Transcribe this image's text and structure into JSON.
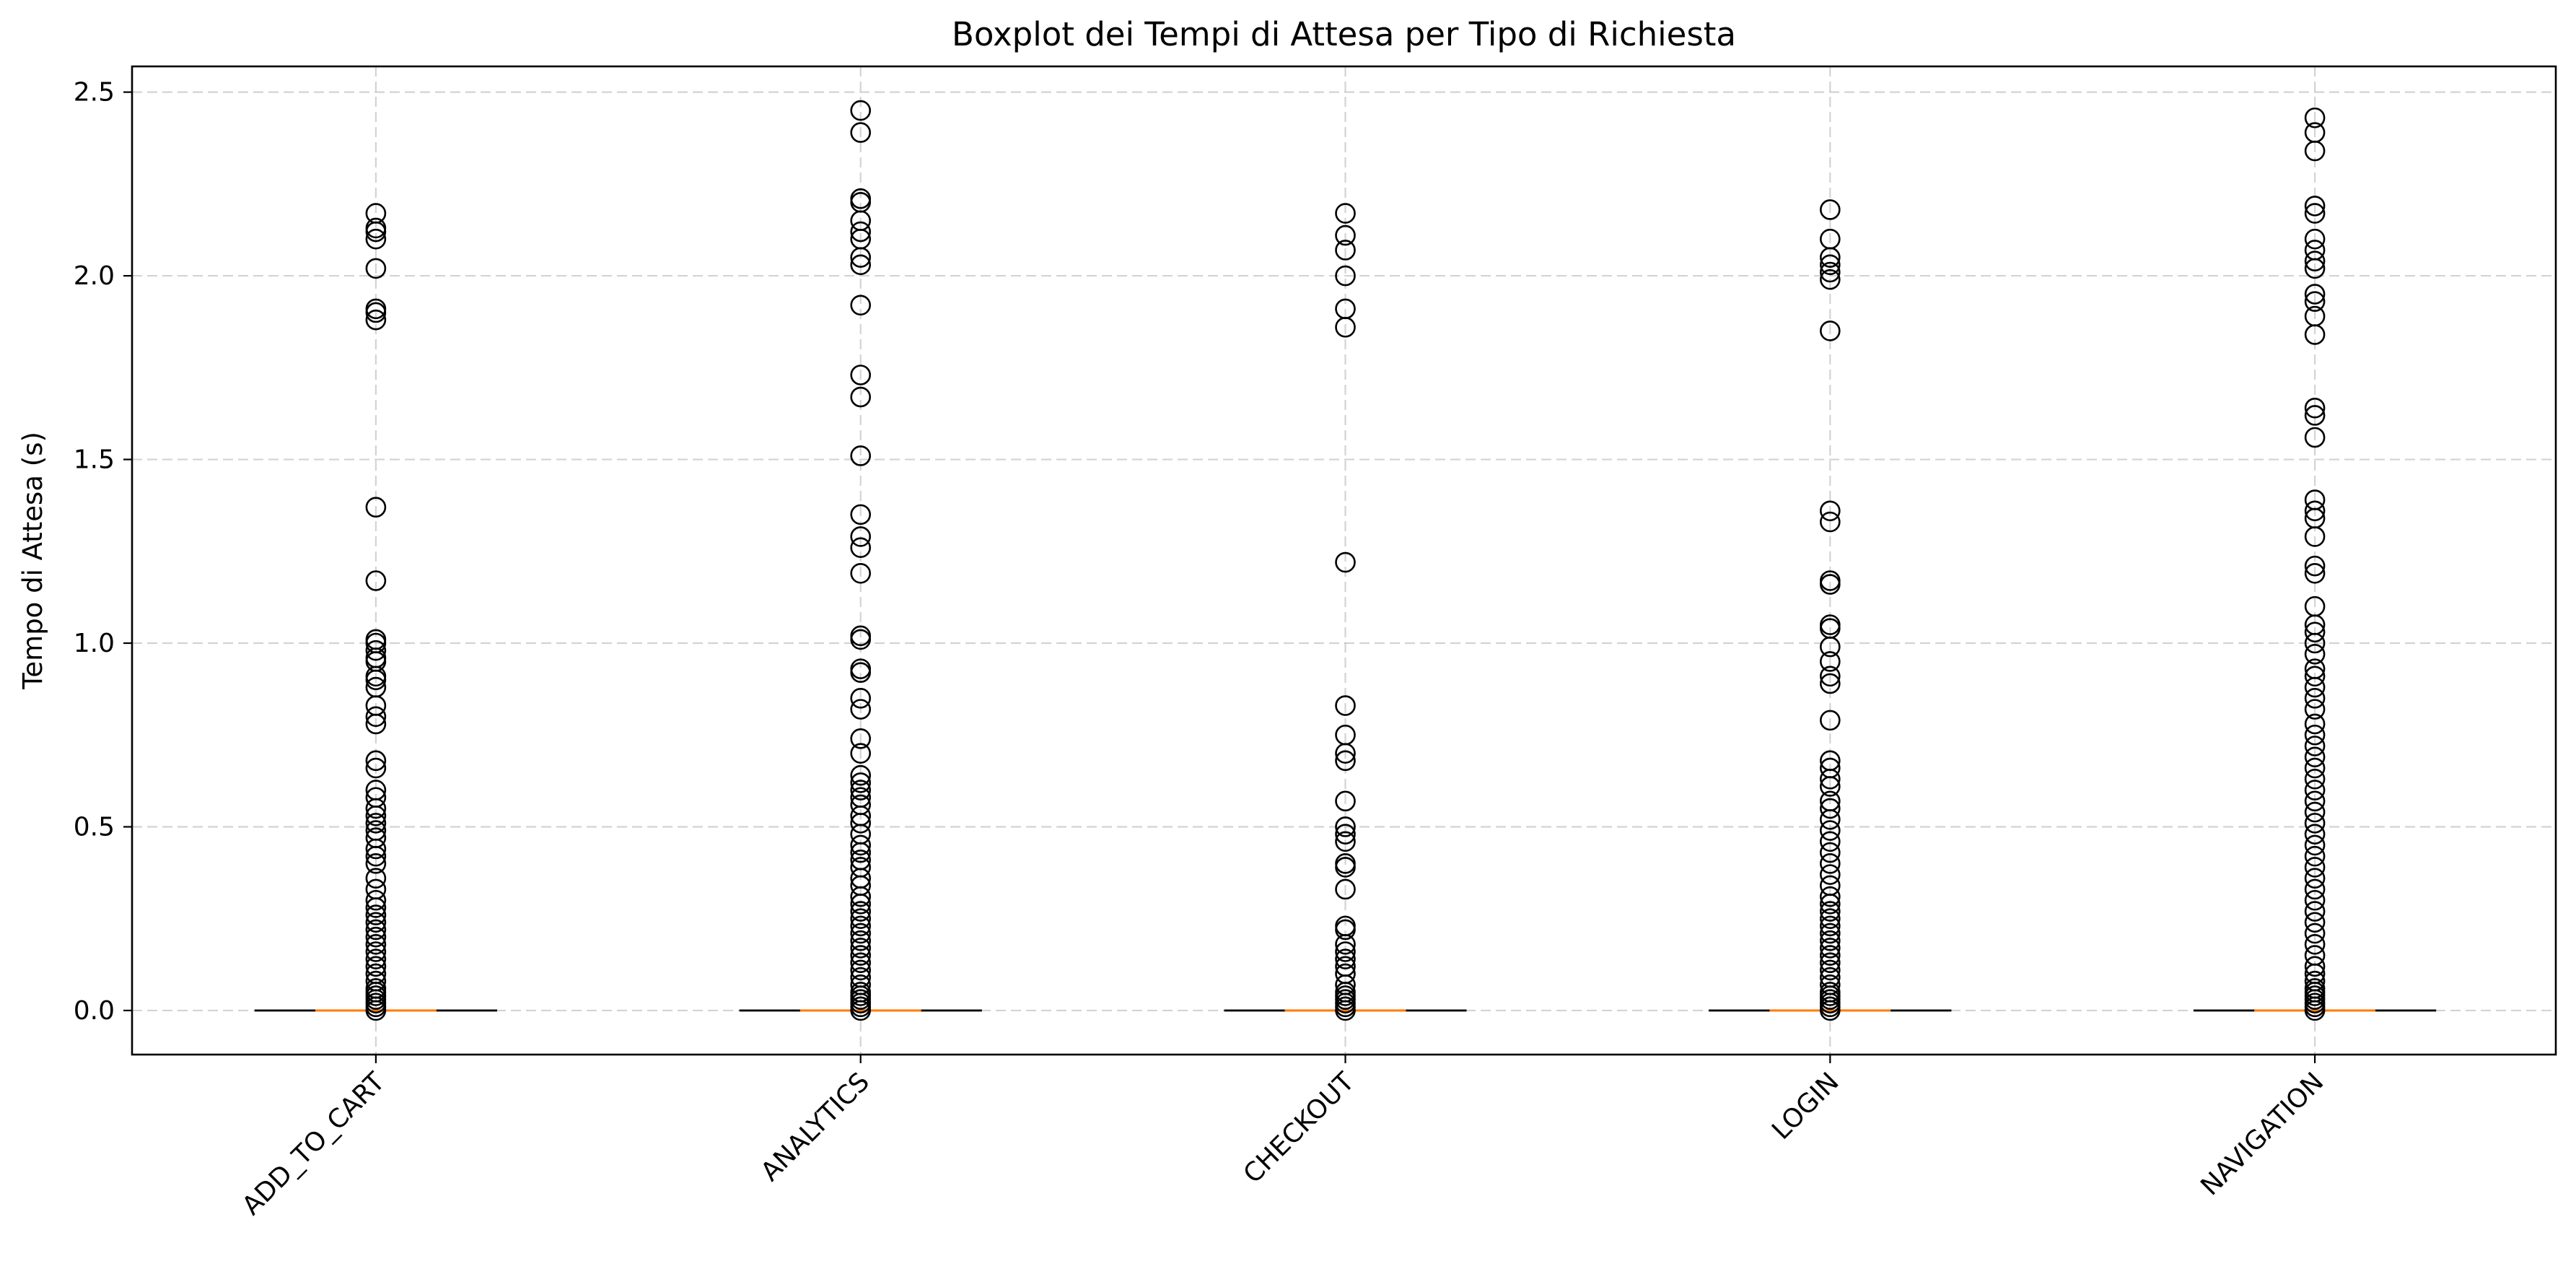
{
  "chart_data": {
    "type": "boxplot",
    "title": "Boxplot dei Tempi di Attesa per Tipo di Richiesta",
    "xlabel": "",
    "ylabel": "Tempo di Attesa (s)",
    "ylim": [
      -0.12,
      2.57
    ],
    "yticks": [
      0.0,
      0.5,
      1.0,
      1.5,
      2.0,
      2.5
    ],
    "ytick_labels": [
      "0.0",
      "0.5",
      "1.0",
      "1.5",
      "2.0",
      "2.5"
    ],
    "grid": true,
    "xtick_rotation_deg": 45,
    "colors": {
      "box": "#000000",
      "median": "#ff7f0e",
      "flier": "#000000",
      "grid": "#b0b0b0"
    },
    "categories": [
      "ADD_TO_CART",
      "ANALYTICS",
      "CHECKOUT",
      "LOGIN",
      "NAVIGATION"
    ],
    "boxes": [
      {
        "category": "ADD_TO_CART",
        "whislo": 0.0,
        "q1": 0.0,
        "med": 0.0,
        "q3": 0.0,
        "whishi": 0.0,
        "fliers": [
          2.17,
          2.13,
          2.12,
          2.1,
          2.02,
          1.91,
          1.9,
          1.88,
          1.37,
          1.17,
          1.01,
          1.0,
          0.98,
          0.96,
          0.95,
          0.91,
          0.9,
          0.88,
          0.83,
          0.8,
          0.78,
          0.68,
          0.66,
          0.6,
          0.58,
          0.55,
          0.53,
          0.51,
          0.49,
          0.47,
          0.44,
          0.42,
          0.4,
          0.36,
          0.33,
          0.3,
          0.28,
          0.26,
          0.24,
          0.22,
          0.2,
          0.18,
          0.16,
          0.14,
          0.12,
          0.1,
          0.08,
          0.06,
          0.05,
          0.04,
          0.03,
          0.02,
          0.01,
          0.0
        ]
      },
      {
        "category": "ANALYTICS",
        "whislo": 0.0,
        "q1": 0.0,
        "med": 0.0,
        "q3": 0.0,
        "whishi": 0.0,
        "fliers": [
          2.45,
          2.39,
          2.21,
          2.2,
          2.15,
          2.12,
          2.1,
          2.05,
          2.03,
          1.92,
          1.73,
          1.67,
          1.51,
          1.35,
          1.29,
          1.26,
          1.19,
          1.02,
          1.01,
          0.93,
          0.92,
          0.85,
          0.82,
          0.74,
          0.7,
          0.64,
          0.62,
          0.6,
          0.58,
          0.56,
          0.53,
          0.51,
          0.48,
          0.45,
          0.43,
          0.41,
          0.39,
          0.36,
          0.34,
          0.31,
          0.29,
          0.27,
          0.25,
          0.23,
          0.21,
          0.19,
          0.17,
          0.15,
          0.13,
          0.11,
          0.09,
          0.07,
          0.05,
          0.04,
          0.03,
          0.02,
          0.01,
          0.0
        ]
      },
      {
        "category": "CHECKOUT",
        "whislo": 0.0,
        "q1": 0.0,
        "med": 0.0,
        "q3": 0.0,
        "whishi": 0.0,
        "fliers": [
          2.17,
          2.11,
          2.07,
          2.0,
          1.91,
          1.86,
          1.22,
          0.83,
          0.75,
          0.7,
          0.68,
          0.57,
          0.5,
          0.48,
          0.46,
          0.4,
          0.39,
          0.33,
          0.23,
          0.22,
          0.18,
          0.16,
          0.14,
          0.12,
          0.1,
          0.07,
          0.05,
          0.04,
          0.03,
          0.02,
          0.01,
          0.0
        ]
      },
      {
        "category": "LOGIN",
        "whislo": 0.0,
        "q1": 0.0,
        "med": 0.0,
        "q3": 0.0,
        "whishi": 0.0,
        "fliers": [
          2.18,
          2.1,
          2.05,
          2.03,
          2.01,
          1.99,
          1.85,
          1.36,
          1.33,
          1.17,
          1.16,
          1.05,
          1.04,
          0.99,
          0.95,
          0.91,
          0.89,
          0.79,
          0.68,
          0.66,
          0.63,
          0.61,
          0.57,
          0.55,
          0.52,
          0.49,
          0.46,
          0.43,
          0.4,
          0.37,
          0.34,
          0.31,
          0.29,
          0.27,
          0.25,
          0.23,
          0.21,
          0.19,
          0.17,
          0.15,
          0.13,
          0.11,
          0.09,
          0.07,
          0.05,
          0.04,
          0.03,
          0.02,
          0.01,
          0.0
        ]
      },
      {
        "category": "NAVIGATION",
        "whislo": 0.0,
        "q1": 0.0,
        "med": 0.0,
        "q3": 0.0,
        "whishi": 0.0,
        "fliers": [
          2.43,
          2.39,
          2.34,
          2.19,
          2.17,
          2.1,
          2.07,
          2.04,
          2.02,
          1.95,
          1.93,
          1.89,
          1.84,
          1.64,
          1.62,
          1.56,
          1.39,
          1.36,
          1.34,
          1.29,
          1.21,
          1.19,
          1.1,
          1.05,
          1.03,
          1.0,
          0.97,
          0.93,
          0.91,
          0.88,
          0.85,
          0.82,
          0.78,
          0.75,
          0.72,
          0.69,
          0.66,
          0.63,
          0.6,
          0.57,
          0.54,
          0.51,
          0.48,
          0.45,
          0.42,
          0.39,
          0.36,
          0.33,
          0.3,
          0.27,
          0.24,
          0.21,
          0.18,
          0.15,
          0.12,
          0.1,
          0.08,
          0.06,
          0.05,
          0.04,
          0.03,
          0.02,
          0.01,
          0.0
        ]
      }
    ]
  }
}
